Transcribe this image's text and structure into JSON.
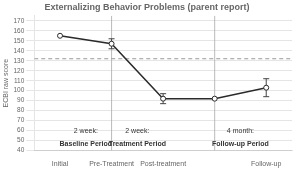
{
  "chart_data": {
    "type": "line",
    "title": "Externalizing Behavior Problems (parent report)",
    "y_label": "ECBI raw score",
    "categories": [
      "Initial",
      "Pre-Treatment",
      "Post-treatment",
      null,
      "Follow-up"
    ],
    "values": [
      155,
      147,
      92,
      92,
      103
    ],
    "error_bars": [
      0,
      5,
      5,
      0,
      9
    ],
    "color": "#2a2a2a",
    "marker": "circle",
    "ylim": [
      40,
      175
    ],
    "yticks": [
      40,
      50,
      60,
      70,
      80,
      90,
      100,
      110,
      120,
      130,
      140,
      150,
      160,
      170
    ],
    "grid": true,
    "reference_line": {
      "y": 132,
      "color": "#999999",
      "line_style": "dashed"
    },
    "dividers": [
      1,
      3
    ],
    "period_labels": [
      {
        "x": 0.5,
        "top": {
          "text": "2 week:",
          "y": 56
        },
        "bottom": {
          "text": "Baseline Period",
          "y": 50
        }
      },
      {
        "x": 1.5,
        "top": {
          "text": "2 week:",
          "y": 56
        },
        "bottom": {
          "text": "Treatment Period",
          "y": 50
        }
      },
      {
        "x": 3.5,
        "top": {
          "text": "4 month:",
          "y": 56
        },
        "bottom": {
          "text": "Follow-up Period",
          "y": 50
        }
      }
    ]
  }
}
